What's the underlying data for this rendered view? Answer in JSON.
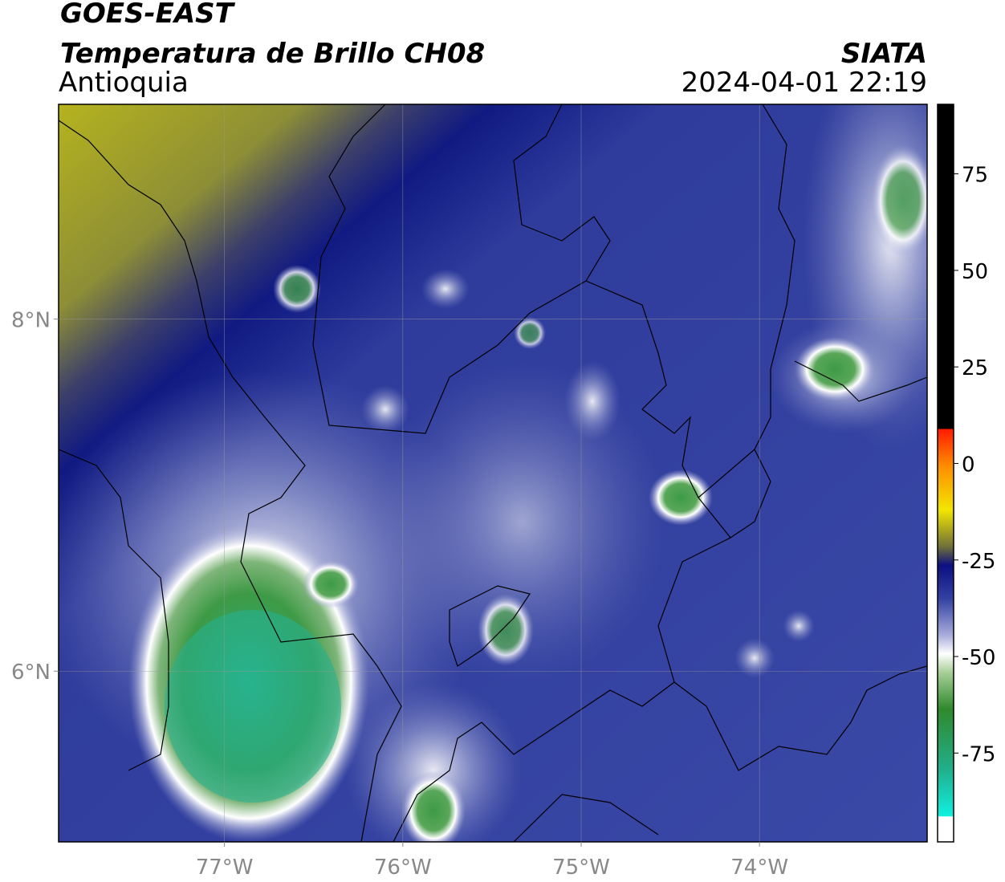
{
  "header": {
    "title": "GOES-EAST",
    "subtitle": "Temperatura de Brillo CH08",
    "region": "Antioquia",
    "source": "SIATA",
    "datetime": "2024-04-01 22:19"
  },
  "map": {
    "xlim": [
      -77.93,
      -73.06
    ],
    "ylim": [
      5.03,
      9.22
    ],
    "xticks": [
      {
        "value": -77,
        "label": "77°W"
      },
      {
        "value": -76,
        "label": "76°W"
      },
      {
        "value": -75,
        "label": "75°W"
      },
      {
        "value": -74,
        "label": "74°W"
      }
    ],
    "yticks": [
      {
        "value": 6,
        "label": "6°N"
      },
      {
        "value": 8,
        "label": "8°N"
      }
    ]
  },
  "colorbar": {
    "lim": [
      -98,
      93
    ],
    "ticks": [
      -75,
      -50,
      -25,
      0,
      25,
      50,
      75
    ]
  }
}
